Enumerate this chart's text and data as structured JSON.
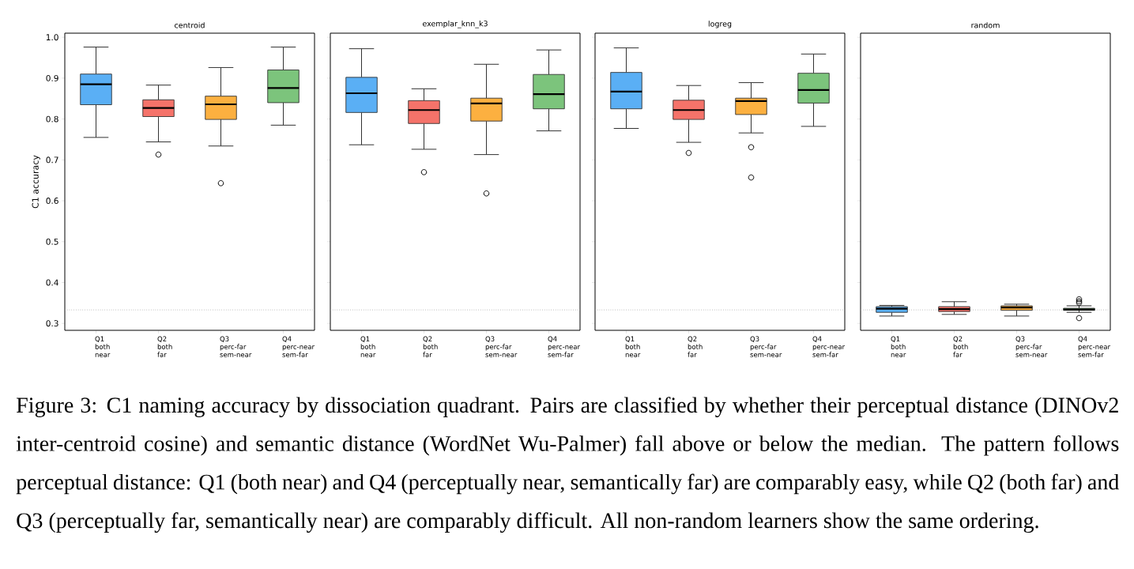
{
  "chart_data": [
    {
      "type": "box",
      "title": "centroid",
      "ylabel": "C1 accuracy",
      "categories": [
        "Q1 both near",
        "Q2 both far",
        "Q3 perc-far sem-near",
        "Q4 perc-near sem-far"
      ],
      "colors": [
        "#5aaff5",
        "#f5736a",
        "#fcb040",
        "#7cc47c"
      ],
      "ylim": [
        0.283,
        1.01
      ],
      "yticks": [
        0.3,
        0.4,
        0.5,
        0.6,
        0.7,
        0.8,
        0.9,
        {
          "value": 1.0,
          "label": "1.0"
        }
      ],
      "boxes": [
        {
          "low": 0.755,
          "q1": 0.835,
          "median": 0.885,
          "q3": 0.91,
          "high": 0.976
        },
        {
          "low": 0.744,
          "q1": 0.806,
          "median": 0.827,
          "q3": 0.847,
          "high": 0.883,
          "outliers": [
            0.713
          ]
        },
        {
          "low": 0.734,
          "q1": 0.799,
          "median": 0.836,
          "q3": 0.856,
          "high": 0.926,
          "outliers": [
            0.643
          ]
        },
        {
          "low": 0.785,
          "q1": 0.84,
          "median": 0.876,
          "q3": 0.92,
          "high": 0.976
        }
      ],
      "ref_lines": [
        {
          "axis": "y",
          "value": 0.333,
          "color": "#999999",
          "line_style": "dotted"
        }
      ],
      "annotations": [
        "Figure 3: C1 naming accuracy by dissociation quadrant. Pairs are classified by whether their perceptual distance (DINOv2 inter-centroid cosine) and semantic distance (WordNet Wu-Palmer) fall above or below the median. The pattern follows perceptual distance: Q1 (both near) and Q4 (perceptually near, semantically far) are comparably easy, while Q2 (both far) and Q3 (perceptually far, semantically near) are comparably difficult. All non-random learners show the same ordering."
      ]
    },
    {
      "type": "box",
      "title": "exemplar_knn_k3",
      "categories": [
        "Q1 both near",
        "Q2 both far",
        "Q3 perc-far sem-near",
        "Q4 perc-near sem-far"
      ],
      "colors": [
        "#5aaff5",
        "#f5736a",
        "#fcb040",
        "#7cc47c"
      ],
      "ylim": [
        0.283,
        1.01
      ],
      "yticks": [
        0.3,
        0.4,
        0.5,
        0.6,
        0.7,
        0.8,
        0.9,
        1.0
      ],
      "tick_labels": "x",
      "boxes": [
        {
          "low": 0.737,
          "q1": 0.816,
          "median": 0.863,
          "q3": 0.902,
          "high": 0.972
        },
        {
          "low": 0.726,
          "q1": 0.789,
          "median": 0.822,
          "q3": 0.845,
          "high": 0.874,
          "outliers": [
            0.67
          ]
        },
        {
          "low": 0.713,
          "q1": 0.795,
          "median": 0.838,
          "q3": 0.851,
          "high": 0.934,
          "outliers": [
            0.618
          ]
        },
        {
          "low": 0.771,
          "q1": 0.825,
          "median": 0.861,
          "q3": 0.909,
          "high": 0.969
        }
      ],
      "ref_lines": [
        {
          "axis": "y",
          "value": 0.333,
          "color": "#999999",
          "line_style": "dotted"
        }
      ]
    },
    {
      "type": "box",
      "title": "logreg",
      "categories": [
        "Q1 both near",
        "Q2 both far",
        "Q3 perc-far sem-near",
        "Q4 perc-near sem-far"
      ],
      "colors": [
        "#5aaff5",
        "#f5736a",
        "#fcb040",
        "#7cc47c"
      ],
      "ylim": [
        0.283,
        1.01
      ],
      "yticks": [
        0.3,
        0.4,
        0.5,
        0.6,
        0.7,
        0.8,
        0.9,
        1.0
      ],
      "tick_labels": "x",
      "boxes": [
        {
          "low": 0.777,
          "q1": 0.825,
          "median": 0.867,
          "q3": 0.914,
          "high": 0.974
        },
        {
          "low": 0.743,
          "q1": 0.799,
          "median": 0.822,
          "q3": 0.846,
          "high": 0.882,
          "outliers": [
            0.717
          ]
        },
        {
          "low": 0.766,
          "q1": 0.811,
          "median": 0.844,
          "q3": 0.851,
          "high": 0.889,
          "outliers": [
            0.731,
            0.657
          ]
        },
        {
          "low": 0.782,
          "q1": 0.839,
          "median": 0.871,
          "q3": 0.912,
          "high": 0.959
        }
      ],
      "ref_lines": [
        {
          "axis": "y",
          "value": 0.333,
          "color": "#999999",
          "line_style": "dotted"
        }
      ]
    },
    {
      "type": "box",
      "title": "random",
      "categories": [
        "Q1 both near",
        "Q2 both far",
        "Q3 perc-far sem-near",
        "Q4 perc-near sem-far"
      ],
      "colors": [
        "#5aaff5",
        "#f5736a",
        "#fcb040",
        "#7cc47c"
      ],
      "ylim": [
        0.283,
        1.01
      ],
      "yticks": [
        0.3,
        0.4,
        0.5,
        0.6,
        0.7,
        0.8,
        0.9,
        1.0
      ],
      "tick_labels": "x",
      "boxes": [
        {
          "low": 0.318,
          "q1": 0.327,
          "median": 0.336,
          "q3": 0.341,
          "high": 0.344
        },
        {
          "low": 0.322,
          "q1": 0.329,
          "median": 0.335,
          "q3": 0.341,
          "high": 0.353
        },
        {
          "low": 0.318,
          "q1": 0.332,
          "median": 0.339,
          "q3": 0.343,
          "high": 0.347
        },
        {
          "low": 0.327,
          "q1": 0.332,
          "median": 0.334,
          "q3": 0.337,
          "high": 0.343,
          "outliers": [
            0.359,
            0.354,
            0.35,
            0.313
          ]
        }
      ],
      "ref_lines": [
        {
          "axis": "y",
          "value": 0.333,
          "color": "#999999",
          "line_style": "dotted"
        }
      ]
    }
  ]
}
